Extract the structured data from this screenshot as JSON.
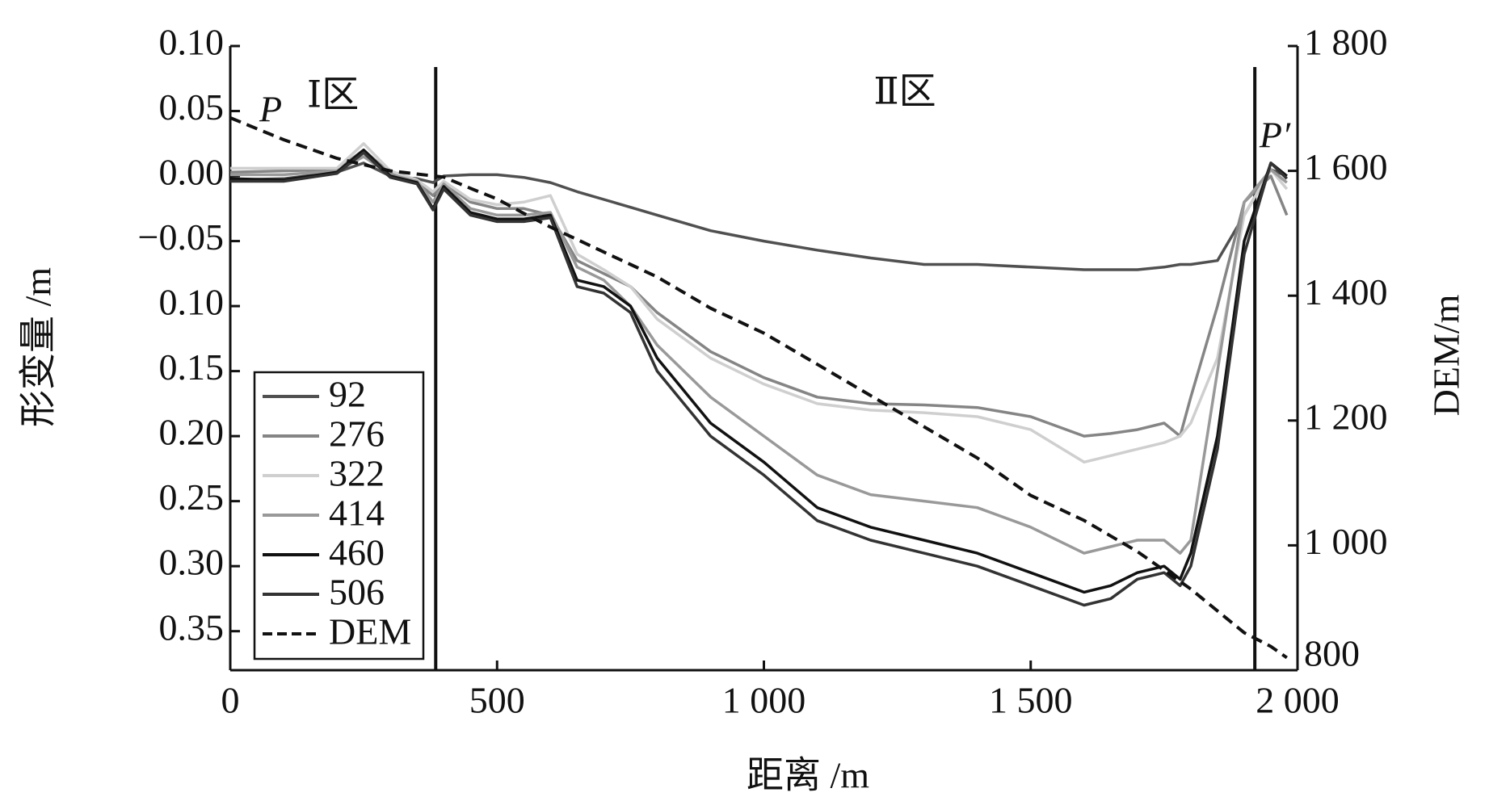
{
  "chart_data": {
    "type": "line",
    "xlabel": "距离 /m",
    "ylabel": "形变量 /m",
    "y2label": "DEM/m",
    "annotations": [
      "Ⅰ区",
      "Ⅱ区",
      "P",
      "P′"
    ],
    "dividers": [
      385,
      1920
    ],
    "x": [
      0,
      100,
      200,
      250,
      300,
      350,
      380,
      400,
      450,
      500,
      550,
      600,
      650,
      700,
      750,
      800,
      900,
      1000,
      1100,
      1200,
      1300,
      1400,
      1500,
      1600,
      1650,
      1700,
      1750,
      1780,
      1800,
      1850,
      1900,
      1950,
      1980
    ],
    "series": [
      {
        "name": "92",
        "color": "#505050",
        "dash": false,
        "values": [
          -0.003,
          -0.002,
          0.003,
          0.01,
          0.0,
          -0.002,
          -0.005,
          0.0,
          0.001,
          0.001,
          -0.001,
          -0.005,
          -0.012,
          -0.018,
          -0.024,
          -0.03,
          -0.042,
          -0.05,
          -0.057,
          -0.063,
          -0.068,
          -0.068,
          -0.07,
          -0.072,
          -0.072,
          -0.072,
          -0.07,
          -0.068,
          -0.068,
          -0.065,
          -0.03,
          0.005,
          0.0
        ]
      },
      {
        "name": "276",
        "color": "#858585",
        "dash": false,
        "values": [
          0.003,
          0.004,
          0.005,
          0.02,
          0.002,
          -0.005,
          -0.015,
          -0.005,
          -0.02,
          -0.025,
          -0.025,
          -0.03,
          -0.065,
          -0.075,
          -0.085,
          -0.105,
          -0.135,
          -0.155,
          -0.17,
          -0.175,
          -0.176,
          -0.178,
          -0.185,
          -0.2,
          -0.198,
          -0.195,
          -0.19,
          -0.2,
          -0.17,
          -0.1,
          -0.02,
          0.0,
          -0.03
        ]
      },
      {
        "name": "322",
        "color": "#cfcfcf",
        "dash": false,
        "values": [
          0.006,
          0.006,
          0.006,
          0.025,
          0.004,
          -0.003,
          -0.012,
          -0.004,
          -0.018,
          -0.022,
          -0.02,
          -0.015,
          -0.06,
          -0.072,
          -0.085,
          -0.11,
          -0.14,
          -0.16,
          -0.175,
          -0.18,
          -0.182,
          -0.185,
          -0.195,
          -0.22,
          -0.215,
          -0.21,
          -0.205,
          -0.2,
          -0.19,
          -0.14,
          -0.03,
          0.005,
          -0.01
        ]
      },
      {
        "name": "414",
        "color": "#999999",
        "dash": false,
        "values": [
          0.001,
          0.001,
          0.004,
          0.015,
          0.001,
          -0.004,
          -0.02,
          -0.006,
          -0.025,
          -0.03,
          -0.03,
          -0.028,
          -0.07,
          -0.08,
          -0.1,
          -0.13,
          -0.17,
          -0.2,
          -0.23,
          -0.245,
          -0.25,
          -0.255,
          -0.27,
          -0.29,
          -0.285,
          -0.28,
          -0.28,
          -0.29,
          -0.28,
          -0.15,
          -0.02,
          0.005,
          -0.005
        ]
      },
      {
        "name": "460",
        "color": "#111111",
        "dash": false,
        "values": [
          -0.002,
          -0.003,
          0.003,
          0.02,
          0.0,
          -0.005,
          -0.025,
          -0.008,
          -0.028,
          -0.033,
          -0.033,
          -0.03,
          -0.08,
          -0.085,
          -0.1,
          -0.14,
          -0.19,
          -0.22,
          -0.255,
          -0.27,
          -0.28,
          -0.29,
          -0.305,
          -0.32,
          -0.315,
          -0.305,
          -0.3,
          -0.31,
          -0.29,
          -0.2,
          -0.05,
          0.01,
          0.0
        ]
      },
      {
        "name": "506",
        "color": "#333333",
        "dash": false,
        "values": [
          -0.004,
          -0.004,
          0.002,
          0.018,
          -0.001,
          -0.006,
          -0.026,
          -0.01,
          -0.03,
          -0.035,
          -0.035,
          -0.032,
          -0.085,
          -0.09,
          -0.105,
          -0.15,
          -0.2,
          -0.23,
          -0.265,
          -0.28,
          -0.29,
          -0.3,
          -0.315,
          -0.33,
          -0.325,
          -0.31,
          -0.305,
          -0.315,
          -0.3,
          -0.21,
          -0.06,
          0.01,
          -0.002
        ]
      },
      {
        "name": "DEM",
        "color": "#111111",
        "dash": true,
        "axis": "y2",
        "values": [
          1685,
          1650,
          1620,
          1610,
          1600,
          1595,
          1592,
          1590,
          1572,
          1555,
          1532,
          1510,
          1490,
          1470,
          1450,
          1430,
          1380,
          1340,
          1290,
          1240,
          1190,
          1140,
          1080,
          1040,
          1015,
          990,
          960,
          942,
          930,
          895,
          860,
          838,
          820
        ]
      }
    ],
    "xlim": [
      0,
      2000
    ],
    "xticks": [
      0,
      500,
      {
        "value": 1000,
        "label": "1 000"
      },
      {
        "value": 1500,
        "label": "1 500"
      },
      {
        "value": 2000,
        "label": "2 000"
      }
    ],
    "ylim": [
      -0.38,
      0.1
    ],
    "yticks": [
      {
        "value": 0.1,
        "label": "0.10"
      },
      0.05,
      {
        "value": 0,
        "label": "0.00"
      },
      {
        "value": -0.05,
        "label": "−0.05"
      },
      {
        "value": -0.1,
        "label": "0.10"
      },
      {
        "value": -0.15,
        "label": "0.15"
      },
      {
        "value": -0.2,
        "label": "0.20"
      },
      {
        "value": -0.25,
        "label": "0.25"
      },
      {
        "value": -0.3,
        "label": "0.30"
      },
      {
        "value": -0.35,
        "label": "0.35"
      }
    ],
    "y2lim": [
      800,
      1800
    ],
    "y2ticks": [
      {
        "value": 1800,
        "label": "1 800"
      },
      {
        "value": 1600,
        "label": "1 600"
      },
      {
        "value": 1400,
        "label": "1 400"
      },
      {
        "value": 1200,
        "label": "1 200"
      },
      {
        "value": 1000,
        "label": "1 000"
      },
      800
    ],
    "legend": "lower left",
    "grid": false
  }
}
